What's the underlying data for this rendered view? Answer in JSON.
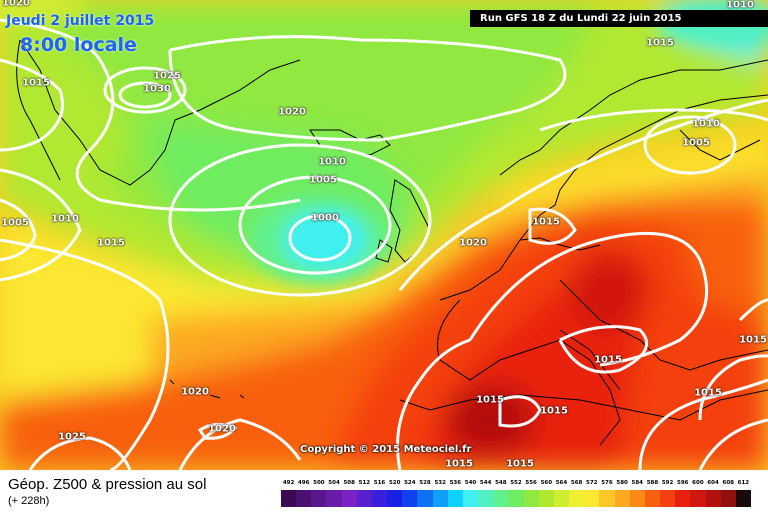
{
  "header": {
    "date_label": "Jeudi 2 juillet 2015",
    "time_label": "8:00 locale",
    "run_label": "Run GFS 18 Z du Lundi 22 juin 2015"
  },
  "copyright": "Copyright © 2015 Meteociel.fr",
  "legend": {
    "title": "Géop. Z500 & pression au sol",
    "subtitle": "(+ 228h)",
    "scale": [
      {
        "label": "492",
        "color": "#3a0a52"
      },
      {
        "label": "496",
        "color": "#4a1070"
      },
      {
        "label": "500",
        "color": "#5a168c"
      },
      {
        "label": "504",
        "color": "#6a1ca8"
      },
      {
        "label": "508",
        "color": "#7a22c4"
      },
      {
        "label": "512",
        "color": "#5a20d0"
      },
      {
        "label": "516",
        "color": "#3a20dc"
      },
      {
        "label": "520",
        "color": "#1a20e6"
      },
      {
        "label": "524",
        "color": "#1040f0"
      },
      {
        "label": "528",
        "color": "#1070f4"
      },
      {
        "label": "532",
        "color": "#10a0f8"
      },
      {
        "label": "536",
        "color": "#10d0fc"
      },
      {
        "label": "540",
        "color": "#40f0f0"
      },
      {
        "label": "544",
        "color": "#50f0c0"
      },
      {
        "label": "548",
        "color": "#60f090"
      },
      {
        "label": "552",
        "color": "#70ec60"
      },
      {
        "label": "556",
        "color": "#90e840"
      },
      {
        "label": "560",
        "color": "#b0e830"
      },
      {
        "label": "564",
        "color": "#d0ec30"
      },
      {
        "label": "568",
        "color": "#eef030"
      },
      {
        "label": "572",
        "color": "#fce830"
      },
      {
        "label": "576",
        "color": "#fcc828"
      },
      {
        "label": "580",
        "color": "#fca820"
      },
      {
        "label": "584",
        "color": "#fc8818"
      },
      {
        "label": "588",
        "color": "#f86010"
      },
      {
        "label": "592",
        "color": "#f44010"
      },
      {
        "label": "596",
        "color": "#e82010"
      },
      {
        "label": "600",
        "color": "#d01810"
      },
      {
        "label": "604",
        "color": "#b41010"
      },
      {
        "label": "608",
        "color": "#901010"
      },
      {
        "label": "612",
        "color": "#1a0a0a"
      }
    ]
  },
  "isobars": [
    "1020",
    "1010",
    "1025",
    "1030",
    "1015",
    "1020",
    "1010",
    "1005",
    "1000",
    "1015",
    "1005",
    "1010",
    "1015",
    "1010",
    "1005",
    "1015",
    "1020",
    "1015",
    "1020",
    "1015",
    "1020",
    "1025",
    "1015",
    "1015",
    "1015",
    "1015",
    "1015"
  ],
  "colors": {
    "title_blue": "#1a63ff",
    "isobar": "#ffffff"
  }
}
